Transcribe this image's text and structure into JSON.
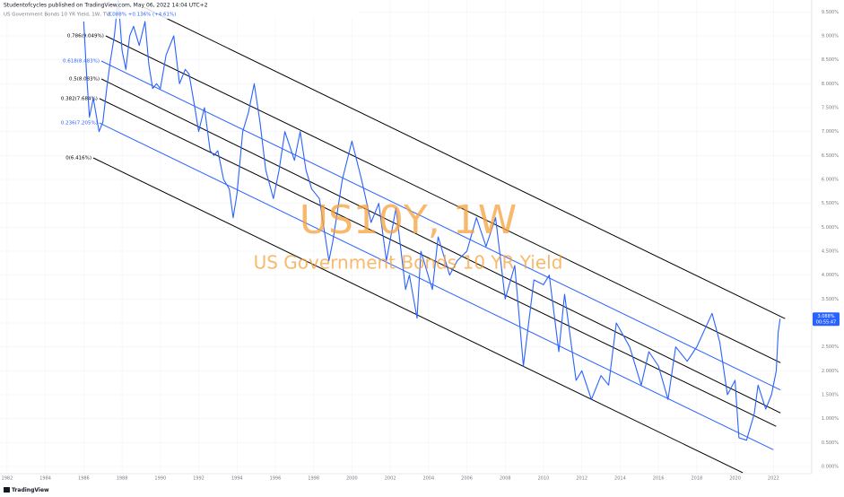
{
  "chart_data": {
    "type": "line",
    "header": "Studentofcycles published on TradingView.com, May 06, 2022 14:04 UTC+2",
    "subtitle": "US Government Bonds 10 YR Yield, 1W, TVC",
    "quote": "3.088%  +0.136% (+4.61%)",
    "watermark_title": "US10Y, 1W",
    "watermark_subtitle": "US Government Bonds 10 YR Yield",
    "last_price_label": "3.088%",
    "countdown": "00:55:47",
    "footer": "TradingView",
    "grid": true,
    "xlim": [
      1981.63,
      2024.0
    ],
    "ylim": [
      -0.15,
      9.75
    ],
    "xticks": [
      1982,
      1984,
      1986,
      1988,
      1990,
      1992,
      1994,
      1996,
      1998,
      2000,
      2002,
      2004,
      2006,
      2008,
      2010,
      2012,
      2014,
      2016,
      2018,
      2020,
      2022
    ],
    "yticks": [
      {
        "value": 0,
        "label": "0.000%"
      },
      {
        "value": 0.5,
        "label": "0.500%"
      },
      {
        "value": 1,
        "label": "1.000%"
      },
      {
        "value": 1.5,
        "label": "1.500%"
      },
      {
        "value": 2,
        "label": "2.000%"
      },
      {
        "value": 2.5,
        "label": "2.500%"
      },
      {
        "value": 3,
        "label": "3.000%"
      },
      {
        "value": 3.5,
        "label": "3.500%"
      },
      {
        "value": 4,
        "label": "4.000%"
      },
      {
        "value": 4.5,
        "label": "4.500%"
      },
      {
        "value": 5,
        "label": "5.000%"
      },
      {
        "value": 5.5,
        "label": "5.500%"
      },
      {
        "value": 6,
        "label": "6.000%"
      },
      {
        "value": 6.5,
        "label": "6.500%"
      },
      {
        "value": 7,
        "label": "7.000%"
      },
      {
        "value": 7.5,
        "label": "7.500%"
      },
      {
        "value": 8,
        "label": "8.000%"
      },
      {
        "value": 8.5,
        "label": "8.500%"
      },
      {
        "value": 9,
        "label": "9.000%"
      },
      {
        "value": 9.5,
        "label": "9.500%"
      }
    ],
    "series": [
      {
        "name": "US10Y",
        "color": "#2962ff",
        "x": [
          1986.0,
          1986.15,
          1986.3,
          1986.5,
          1986.8,
          1987.0,
          1987.2,
          1987.4,
          1987.6,
          1987.8,
          1988.0,
          1988.2,
          1988.4,
          1988.6,
          1988.9,
          1989.2,
          1989.4,
          1989.6,
          1989.8,
          1990.0,
          1990.3,
          1990.7,
          1991.0,
          1991.3,
          1991.5,
          1991.8,
          1992.0,
          1992.3,
          1992.6,
          1992.8,
          1993.0,
          1993.3,
          1993.6,
          1993.8,
          1994.0,
          1994.3,
          1994.6,
          1994.9,
          1995.2,
          1995.5,
          1995.9,
          1996.2,
          1996.5,
          1997.0,
          1997.3,
          1997.6,
          1997.9,
          1998.3,
          1998.8,
          1999.0,
          1999.5,
          2000.0,
          2000.5,
          2001.0,
          2001.4,
          2001.8,
          2002.3,
          2002.8,
          2003.0,
          2003.4,
          2003.6,
          2004.2,
          2004.5,
          2005.1,
          2005.5,
          2006.0,
          2006.5,
          2007.0,
          2007.5,
          2008.0,
          2008.5,
          2008.95,
          2009.5,
          2010.0,
          2010.3,
          2010.8,
          2011.1,
          2011.7,
          2012.0,
          2012.5,
          2013.0,
          2013.4,
          2013.8,
          2014.5,
          2015.1,
          2015.5,
          2016.0,
          2016.5,
          2016.9,
          2017.5,
          2018.0,
          2018.8,
          2019.2,
          2019.6,
          2020.0,
          2020.2,
          2020.6,
          2021.0,
          2021.2,
          2021.6,
          2021.9,
          2022.0,
          2022.15,
          2022.25,
          2022.35
        ],
        "values": [
          9.3,
          8.2,
          7.3,
          7.7,
          7.0,
          7.2,
          7.9,
          8.5,
          9.0,
          9.8,
          8.7,
          8.3,
          9.0,
          9.2,
          8.8,
          9.3,
          8.4,
          7.9,
          8.0,
          7.9,
          8.6,
          9.0,
          8.0,
          8.3,
          8.2,
          7.5,
          7.0,
          7.5,
          6.6,
          6.5,
          6.6,
          6.0,
          5.8,
          5.2,
          5.7,
          7.0,
          7.4,
          8.0,
          7.2,
          6.2,
          5.6,
          6.2,
          7.0,
          6.4,
          7.0,
          6.2,
          5.8,
          5.6,
          4.3,
          4.7,
          6.0,
          6.8,
          6.0,
          5.1,
          5.5,
          4.3,
          5.4,
          3.7,
          4.0,
          3.1,
          4.5,
          3.7,
          4.8,
          4.0,
          4.3,
          4.5,
          5.2,
          4.6,
          5.2,
          3.5,
          4.2,
          2.1,
          3.9,
          3.8,
          4.0,
          2.4,
          3.6,
          1.8,
          2.0,
          1.4,
          1.9,
          1.7,
          3.0,
          2.5,
          1.7,
          2.4,
          2.1,
          1.4,
          2.5,
          2.2,
          2.5,
          3.2,
          2.6,
          1.5,
          1.8,
          0.6,
          0.55,
          1.1,
          1.7,
          1.2,
          1.5,
          1.7,
          2.0,
          2.8,
          3.088
        ]
      }
    ],
    "channels": [
      {
        "color": "#000000",
        "x": [
          1989.12,
          2022.61
        ],
        "y": [
          9.6,
          3.09
        ]
      },
      {
        "label": "0.786(9.049%)",
        "color": "#000000",
        "x": [
          1987.15,
          2022.37
        ],
        "y": [
          9.0,
          2.17
        ]
      },
      {
        "label": "0.618(8.483%)",
        "color": "#2962ff",
        "x": [
          1986.92,
          2022.37
        ],
        "y": [
          8.475,
          1.6
        ]
      },
      {
        "label": "0.5(8.083%)",
        "color": "#000000",
        "x": [
          1986.92,
          2022.37
        ],
        "y": [
          8.1,
          1.12
        ]
      },
      {
        "label": "0.382(7.684%)",
        "color": "#000000",
        "x": [
          1986.82,
          2022.14
        ],
        "y": [
          7.69,
          0.84
        ]
      },
      {
        "label": "0.236(7.205%)",
        "color": "#2962ff",
        "x": [
          1986.82,
          2022.0
        ],
        "y": [
          7.18,
          0.35
        ]
      },
      {
        "label": "0(6.416%)",
        "color": "#000000",
        "x": [
          1986.5,
          2020.4
        ],
        "y": [
          6.45,
          -0.13
        ]
      }
    ]
  }
}
